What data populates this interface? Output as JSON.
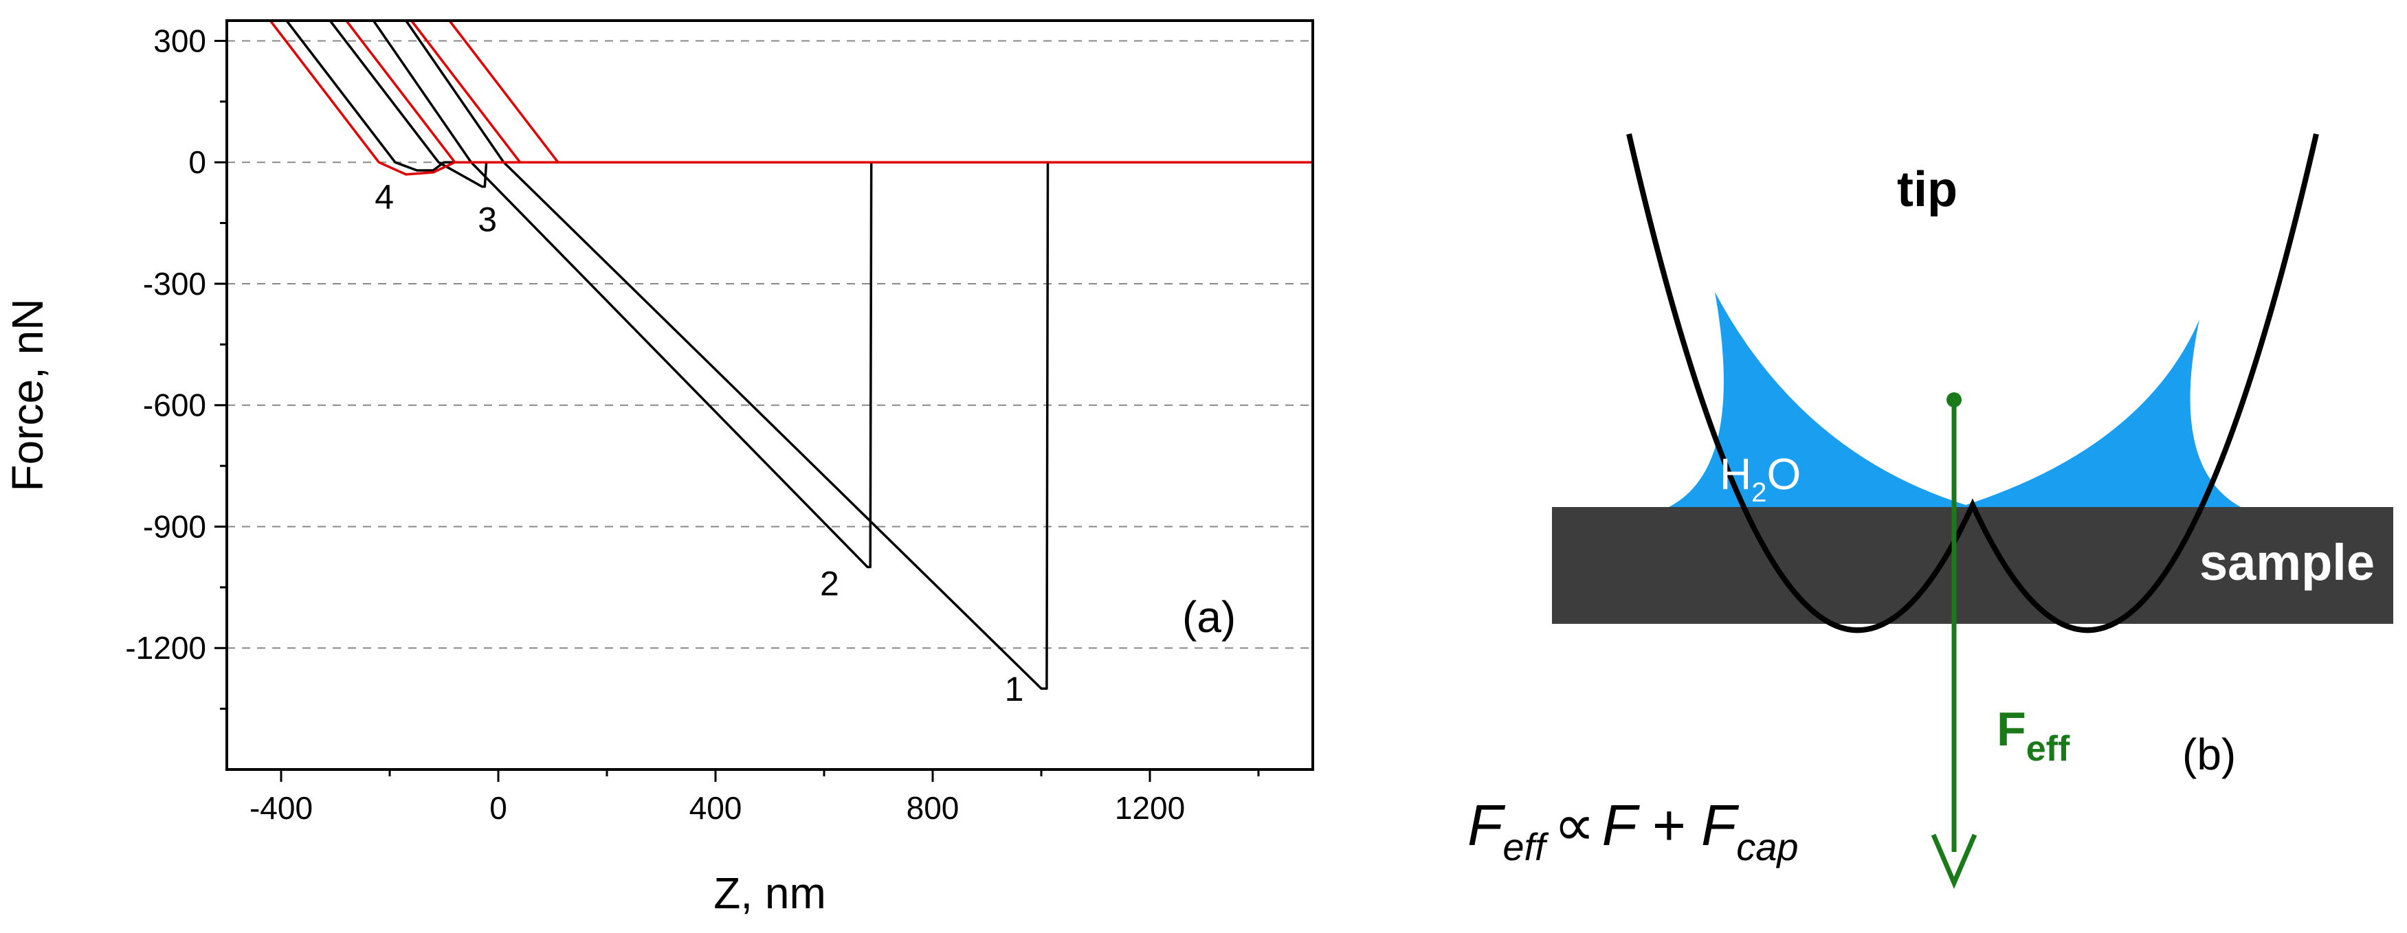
{
  "chart_data": {
    "type": "line",
    "panel_label": "(a)",
    "xlabel": "Z, nm",
    "ylabel": "Force, nN",
    "xlim": [
      -500,
      1500
    ],
    "ylim": [
      -1500,
      350
    ],
    "x_ticks": [
      "-400",
      "0",
      "400",
      "800",
      "1200"
    ],
    "y_ticks": [
      "300",
      "0",
      "-300",
      "-600",
      "-900",
      "-1200"
    ],
    "grid": "horizontal dashed",
    "series": [
      {
        "name": "1",
        "color": "#000000",
        "points": [
          [
            -170,
            350
          ],
          [
            10,
            0
          ],
          [
            1000,
            -1300
          ],
          [
            1010,
            -1300
          ],
          [
            1012,
            0
          ],
          [
            1500,
            0
          ]
        ]
      },
      {
        "name": "2",
        "color": "#000000",
        "points": [
          [
            -230,
            350
          ],
          [
            -50,
            0
          ],
          [
            680,
            -1000
          ],
          [
            685,
            -1000
          ],
          [
            687,
            0
          ],
          [
            1500,
            0
          ]
        ]
      },
      {
        "name": "3",
        "color": "#000000",
        "points": [
          [
            -310,
            350
          ],
          [
            -110,
            0
          ],
          [
            -30,
            -60
          ],
          [
            -25,
            -60
          ],
          [
            -22,
            0
          ],
          [
            1500,
            0
          ]
        ]
      },
      {
        "name": "4",
        "color": "#000000",
        "points": [
          [
            -390,
            350
          ],
          [
            -190,
            0
          ],
          [
            -150,
            -20
          ],
          [
            -120,
            -20
          ],
          [
            -100,
            0
          ],
          [
            1500,
            0
          ]
        ]
      },
      {
        "name": "1",
        "color": "#e00000",
        "points": [
          [
            -90,
            350
          ],
          [
            110,
            0
          ],
          [
            1500,
            0
          ]
        ]
      },
      {
        "name": "2",
        "color": "#e00000",
        "points": [
          [
            -160,
            350
          ],
          [
            40,
            0
          ],
          [
            1500,
            0
          ]
        ]
      },
      {
        "name": "3",
        "color": "#e00000",
        "points": [
          [
            -280,
            350
          ],
          [
            -80,
            0
          ],
          [
            1500,
            0
          ]
        ]
      },
      {
        "name": "4",
        "color": "#e00000",
        "points": [
          [
            -420,
            350
          ],
          [
            -220,
            0
          ],
          [
            -170,
            -30
          ],
          [
            -120,
            -25
          ],
          [
            -80,
            0
          ],
          [
            1500,
            0
          ]
        ]
      }
    ],
    "curve_labels": [
      {
        "text": "1",
        "x": 950,
        "y": -1330
      },
      {
        "text": "2",
        "x": 610,
        "y": -1070
      },
      {
        "text": "3",
        "x": -20,
        "y": -170
      },
      {
        "text": "4",
        "x": -210,
        "y": -115
      }
    ]
  },
  "diagram": {
    "panel_label": "(b)",
    "tip_label": "tip",
    "water_label_base": "H",
    "water_label_sub": "2",
    "water_label_tail": "O",
    "sample_label": "sample",
    "force_label_base": "F",
    "force_label_sub": "eff",
    "equation": {
      "lhs_base": "F",
      "lhs_sub": "eff",
      "relation": "∝",
      "term1": "F",
      "plus": "+",
      "term2_base": "F",
      "term2_sub": "cap"
    },
    "colors": {
      "water": "#1a9ef0",
      "sample": "#3d3d3d",
      "tip": "#000000",
      "arrow": "#1a7a1a",
      "white_text": "#ffffff"
    }
  }
}
